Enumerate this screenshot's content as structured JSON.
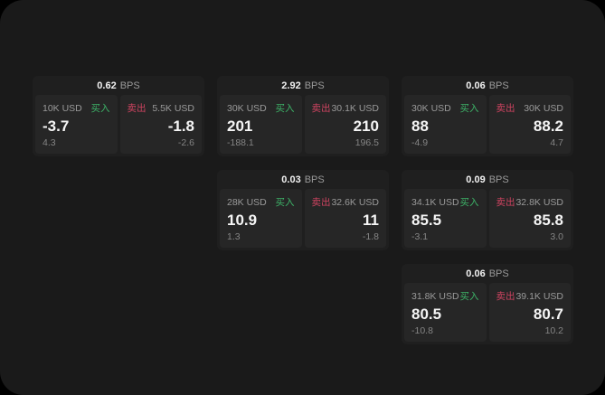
{
  "labels": {
    "bps": "BPS",
    "buy": "买入",
    "sell": "卖出"
  },
  "colors": {
    "canvas": "#000000",
    "window_bg": "#1a1a1a",
    "card_bg": "#1f1f1f",
    "panel_bg": "#262626",
    "buy_green": "#3db368",
    "sell_red": "#cd4360"
  },
  "cards": [
    {
      "bps": "0.62",
      "buy": {
        "amount": "10K USD",
        "value": "-3.7",
        "sub": "4.3"
      },
      "sell": {
        "amount": "5.5K USD",
        "value": "-1.8",
        "sub": "-2.6"
      }
    },
    {
      "bps": "2.92",
      "buy": {
        "amount": "30K USD",
        "value": "201",
        "sub": "-188.1"
      },
      "sell": {
        "amount": "30.1K USD",
        "value": "210",
        "sub": "196.5"
      }
    },
    {
      "bps": "0.06",
      "buy": {
        "amount": "30K USD",
        "value": "88",
        "sub": "-4.9"
      },
      "sell": {
        "amount": "30K USD",
        "value": "88.2",
        "sub": "4.7"
      }
    },
    {
      "bps": "0.03",
      "buy": {
        "amount": "28K USD",
        "value": "10.9",
        "sub": "1.3"
      },
      "sell": {
        "amount": "32.6K USD",
        "value": "11",
        "sub": "-1.8"
      }
    },
    {
      "bps": "0.09",
      "buy": {
        "amount": "34.1K USD",
        "value": "85.5",
        "sub": "-3.1"
      },
      "sell": {
        "amount": "32.8K USD",
        "value": "85.8",
        "sub": "3.0"
      }
    },
    {
      "bps": "0.06",
      "buy": {
        "amount": "31.8K USD",
        "value": "80.5",
        "sub": "-10.8"
      },
      "sell": {
        "amount": "39.1K USD",
        "value": "80.7",
        "sub": "10.2"
      }
    }
  ]
}
